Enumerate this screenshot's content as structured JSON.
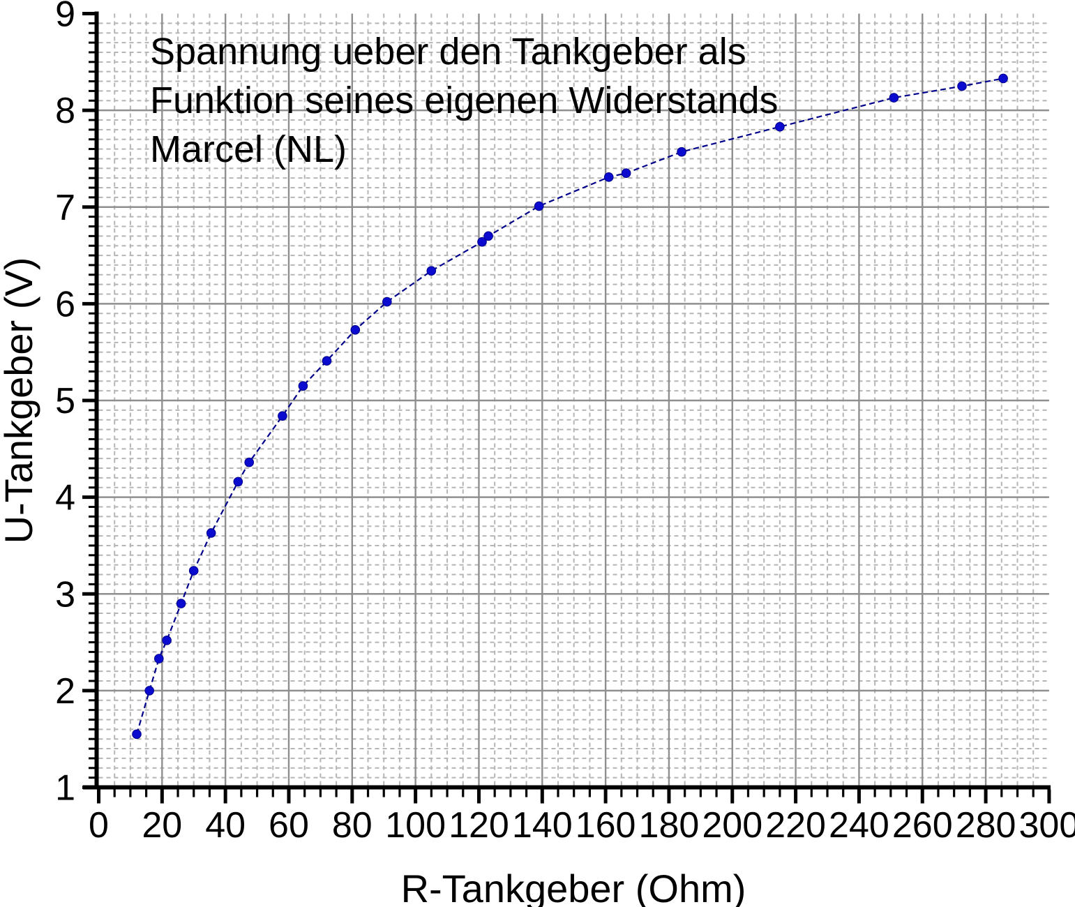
{
  "chart_data": {
    "type": "scatter",
    "title_lines": [
      "Spannung ueber den Tankgeber als",
      "Funktion seines eigenen Widerstands",
      "Marcel (NL)"
    ],
    "xlabel": "R-Tankgeber (Ohm)",
    "ylabel": "U-Tankgeber (V)",
    "xlim": [
      0,
      300
    ],
    "ylim": [
      1,
      9
    ],
    "x_tick_labels": [
      "0",
      "20",
      "40",
      "60",
      "80",
      "100",
      "120",
      "140",
      "160",
      "180",
      "200",
      "220",
      "240",
      "260",
      "280",
      "300"
    ],
    "y_tick_labels": [
      "1",
      "2",
      "3",
      "4",
      "5",
      "6",
      "7",
      "8",
      "9"
    ],
    "x_major_step": 20,
    "y_major_step": 1,
    "x_minor_step": 5,
    "y_minor_step": 0.1,
    "grid": {
      "major": "solid",
      "minor": "dashed"
    },
    "legend": "none",
    "series": [
      {
        "name": "U-Tankgeber",
        "marker": "filled-circle",
        "line_style": "dashed",
        "points": [
          [
            12,
            1.55
          ],
          [
            16,
            2.0
          ],
          [
            19,
            2.33
          ],
          [
            21.5,
            2.52
          ],
          [
            26,
            2.9
          ],
          [
            30,
            3.24
          ],
          [
            35.5,
            3.63
          ],
          [
            44,
            4.16
          ],
          [
            47.5,
            4.36
          ],
          [
            58,
            4.84
          ],
          [
            64.5,
            5.15
          ],
          [
            72,
            5.41
          ],
          [
            81,
            5.73
          ],
          [
            91,
            6.02
          ],
          [
            105,
            6.34
          ],
          [
            121,
            6.64
          ],
          [
            123,
            6.7
          ],
          [
            139,
            7.01
          ],
          [
            161,
            7.31
          ],
          [
            166.5,
            7.35
          ],
          [
            184,
            7.57
          ],
          [
            215,
            7.83
          ],
          [
            251,
            8.13
          ],
          [
            272.5,
            8.25
          ],
          [
            285.5,
            8.33
          ]
        ]
      }
    ],
    "colors": {
      "marker": "#0b0bd0",
      "line": "#00008b",
      "major_grid": "#8f8f8f",
      "minor_grid": "#b5b5b5",
      "axis": "#000000",
      "text": "#000000",
      "background": "#ffffff"
    }
  }
}
